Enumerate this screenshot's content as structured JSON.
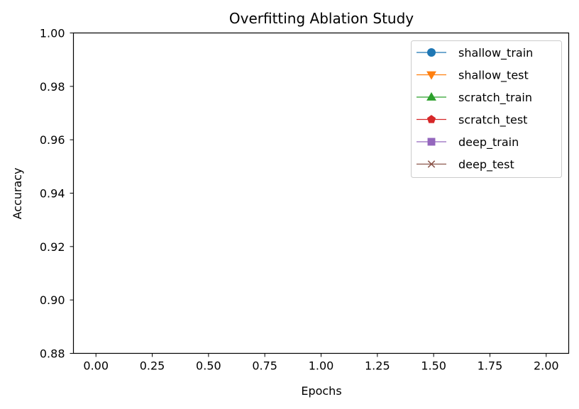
{
  "chart_data": {
    "type": "line",
    "title": "Overfitting Ablation Study",
    "xlabel": "Epochs",
    "ylabel": "Accuracy",
    "xlim": [
      -0.1,
      2.1
    ],
    "ylim": [
      0.88,
      1.0
    ],
    "xticks": [
      0.0,
      0.25,
      0.5,
      0.75,
      1.0,
      1.25,
      1.5,
      1.75,
      2.0
    ],
    "xtick_labels": [
      "0.00",
      "0.25",
      "0.50",
      "0.75",
      "1.00",
      "1.25",
      "1.50",
      "1.75",
      "2.00"
    ],
    "yticks": [
      0.88,
      0.9,
      0.92,
      0.94,
      0.96,
      0.98,
      1.0
    ],
    "ytick_labels": [
      "0.88",
      "0.90",
      "0.92",
      "0.94",
      "0.96",
      "0.98",
      "1.00"
    ],
    "grid": false,
    "legend_position": "top-right",
    "series": [
      {
        "name": "shallow_train",
        "color": "#1f77b4",
        "marker": "circle",
        "x": [],
        "y": []
      },
      {
        "name": "shallow_test",
        "color": "#ff7f0e",
        "marker": "triangle-down",
        "x": [],
        "y": []
      },
      {
        "name": "scratch_train",
        "color": "#2ca02c",
        "marker": "triangle-up",
        "x": [],
        "y": []
      },
      {
        "name": "scratch_test",
        "color": "#d62728",
        "marker": "pentagon",
        "x": [],
        "y": []
      },
      {
        "name": "deep_train",
        "color": "#9467bd",
        "marker": "square",
        "x": [],
        "y": []
      },
      {
        "name": "deep_test",
        "color": "#8c564b",
        "marker": "x",
        "x": [],
        "y": []
      }
    ]
  }
}
